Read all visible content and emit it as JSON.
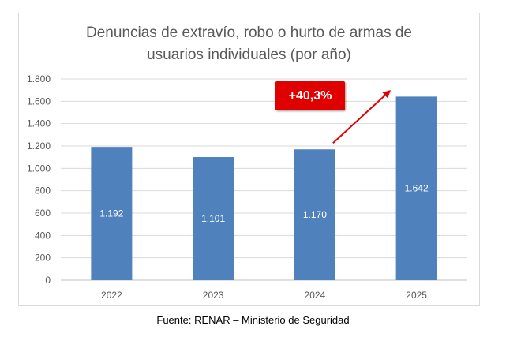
{
  "chart_data": {
    "type": "bar",
    "title_lines": [
      "Denuncias de extravío, robo o hurto de armas de",
      "usuarios individuales (por año)"
    ],
    "categories": [
      "2022",
      "2023",
      "2024",
      "2025"
    ],
    "values": [
      1192,
      1101,
      1170,
      1642
    ],
    "value_labels": [
      "1.192",
      "1.101",
      "1.170",
      "1.642"
    ],
    "ylim": [
      0,
      1800
    ],
    "yticks": [
      0,
      200,
      400,
      600,
      800,
      1000,
      1200,
      1400,
      1600,
      1800
    ],
    "ytick_labels": [
      "0",
      "200",
      "400",
      "600",
      "800",
      "1.000",
      "1.200",
      "1.400",
      "1.600",
      "1.800"
    ],
    "grid": true,
    "bar_color": "#4f81bd",
    "annotation": {
      "text": "+40,3%",
      "color": "#e00000"
    }
  },
  "source": "Fuente: RENAR – Ministerio de Seguridad"
}
